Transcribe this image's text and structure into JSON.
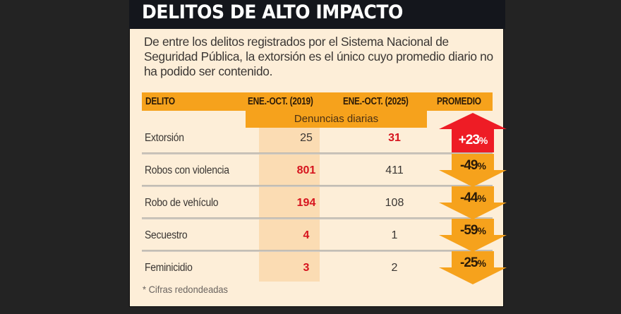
{
  "title": "DELITOS DE ALTO IMPACTO",
  "intro": "De entre los delitos registrados por el Sistema Nacional de Seguridad Pública, la extorsión es el único cuyo promedio diario no ha podido ser contenido.",
  "colors": {
    "title_bg": "#14161c",
    "panel_bg": "#fdeed8",
    "header_orange": "#f6a21c",
    "column_highlight": "#fbdcb3",
    "increase_red": "#ee1c25",
    "decrease_orange": "#f6a21c",
    "highlight_text_red": "#d6141e"
  },
  "table": {
    "headers": [
      "DELITO",
      "ENE.-OCT. (2019)",
      "ENE.-OCT. (2025)",
      "PROMEDIO"
    ],
    "subheader": "Denuncias diarias",
    "rows": [
      {
        "delito": "Extorsión",
        "y2019": "25",
        "y2025": "31",
        "promedio": "+23",
        "direction": "up",
        "highlight": "2025"
      },
      {
        "delito": "Robos con violencia",
        "y2019": "801",
        "y2025": "411",
        "promedio": "-49",
        "direction": "down",
        "highlight": "2019"
      },
      {
        "delito": "Robo de vehículo",
        "y2019": "194",
        "y2025": "108",
        "promedio": "-44",
        "direction": "down",
        "highlight": "2019"
      },
      {
        "delito": "Secuestro",
        "y2019": "4",
        "y2025": "1",
        "promedio": "-59",
        "direction": "down",
        "highlight": "2019"
      },
      {
        "delito": "Feminicidio",
        "y2019": "3",
        "y2025": "2",
        "promedio": "-25",
        "direction": "down",
        "highlight": "2019"
      }
    ]
  },
  "percent_sign": "%",
  "note": "* Cifras redondeadas",
  "chart_data": {
    "type": "table",
    "title": "DELITOS DE ALTO IMPACTO",
    "subtitle": "De entre los delitos registrados por el Sistema Nacional de Seguridad Pública, la extorsión es el único cuyo promedio diario no ha podido ser contenido.",
    "unit": "Denuncias diarias",
    "columns": [
      "DELITO",
      "ENE.-OCT. (2019)",
      "ENE.-OCT. (2025)",
      "PROMEDIO"
    ],
    "categories": [
      "Extorsión",
      "Robos con violencia",
      "Robo de vehículo",
      "Secuestro",
      "Feminicidio"
    ],
    "series": [
      {
        "name": "ENE.-OCT. (2019)",
        "values": [
          25,
          801,
          194,
          4,
          3
        ]
      },
      {
        "name": "ENE.-OCT. (2025)",
        "values": [
          31,
          411,
          108,
          1,
          2
        ]
      },
      {
        "name": "PROMEDIO (% cambio)",
        "values": [
          23,
          -49,
          -44,
          -59,
          -25
        ]
      }
    ],
    "note": "* Cifras redondeadas"
  }
}
